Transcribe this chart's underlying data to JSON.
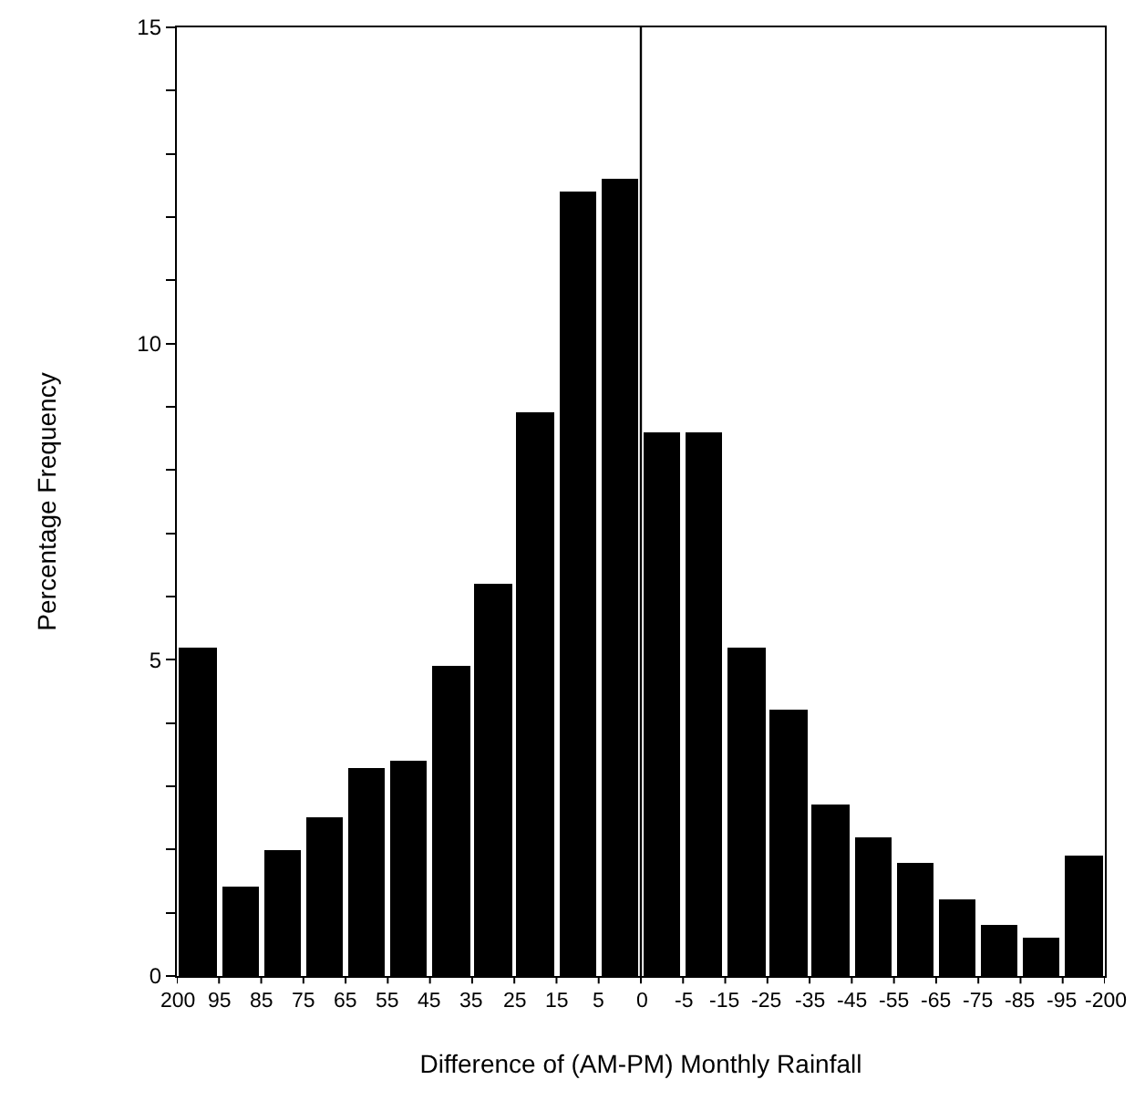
{
  "chart_data": {
    "type": "bar",
    "xlabel": "Difference of (AM-PM) Monthly Rainfall",
    "ylabel": "Percentage Frequency",
    "categories": [
      null,
      null,
      null,
      null,
      null,
      null,
      null,
      null,
      null,
      null,
      null,
      null,
      null,
      null,
      null,
      null,
      null,
      null,
      null,
      null,
      null,
      null
    ],
    "values": [
      5.2,
      1.4,
      2.0,
      2.5,
      3.3,
      3.4,
      4.9,
      6.2,
      8.9,
      12.4,
      12.6,
      8.6,
      8.6,
      5.2,
      4.2,
      2.7,
      2.2,
      1.8,
      1.2,
      0.8,
      0.6,
      1.9
    ],
    "color": "#000000",
    "ylim": [
      0,
      15
    ],
    "yticks": [
      0,
      {
        "value": 1,
        "label": null
      },
      {
        "value": 2,
        "label": null
      },
      {
        "value": 3,
        "label": null
      },
      {
        "value": 4,
        "label": null
      },
      5,
      {
        "value": 6,
        "label": null
      },
      {
        "value": 7,
        "label": null
      },
      {
        "value": 8,
        "label": null
      },
      {
        "value": 9,
        "label": null
      },
      10,
      {
        "value": 11,
        "label": null
      },
      {
        "value": 12,
        "label": null
      },
      {
        "value": 13,
        "label": null
      },
      {
        "value": 14,
        "label": null
      },
      15
    ],
    "annotations": [
      "200",
      "95",
      "85",
      "75",
      "65",
      "55",
      "45",
      "35",
      "25",
      "15",
      "5",
      "0",
      "-5",
      "-15",
      "-25",
      "-35",
      "-45",
      "-55",
      "-65",
      "-75",
      "-85",
      "-95",
      "-200"
    ],
    "grid": false
  }
}
